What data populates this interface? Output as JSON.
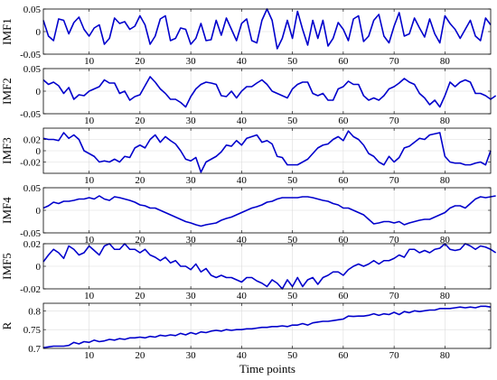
{
  "chart_data": {
    "type": "line",
    "xlabel": "Time points",
    "xlim": [
      1,
      89
    ],
    "xticks": [
      10,
      20,
      30,
      40,
      50,
      60,
      70,
      80
    ],
    "grid": true,
    "line_color": "#0000cc",
    "panels": [
      {
        "name": "IMF1",
        "ylim": [
          -0.05,
          0.05
        ],
        "yticks": [
          -0.05,
          0,
          0.05
        ],
        "ytick_labels": [
          "-0.05",
          "0",
          "0.05"
        ],
        "values": [
          0.025,
          -0.01,
          -0.02,
          0.028,
          0.025,
          -0.005,
          0.02,
          0.032,
          0.005,
          -0.01,
          0.008,
          0.015,
          -0.028,
          -0.015,
          0.03,
          0.018,
          0.022,
          0.005,
          0.012,
          0.035,
          0.015,
          -0.028,
          -0.01,
          0.028,
          0.035,
          -0.02,
          -0.015,
          0.008,
          0.005,
          -0.028,
          -0.015,
          0.018,
          -0.02,
          -0.018,
          0.025,
          -0.008,
          0.03,
          0.005,
          -0.02,
          0.018,
          0.028,
          -0.02,
          -0.025,
          0.025,
          0.05,
          0.025,
          -0.038,
          -0.015,
          0.025,
          -0.015,
          0.045,
          0.005,
          -0.03,
          0.025,
          -0.015,
          0.025,
          -0.032,
          -0.015,
          0.02,
          0.005,
          -0.02,
          0.028,
          0.035,
          -0.022,
          -0.01,
          0.025,
          0.038,
          -0.01,
          -0.025,
          0.012,
          0.042,
          -0.01,
          -0.005,
          0.03,
          0.008,
          -0.012,
          0.028,
          -0.005,
          -0.025,
          0.035,
          0.018,
          0.005,
          -0.015,
          0.005,
          0.025,
          -0.01,
          -0.02,
          0.03,
          0.015
        ]
      },
      {
        "name": "IMF2",
        "ylim": [
          -0.05,
          0.05
        ],
        "yticks": [
          -0.05,
          0,
          0.05
        ],
        "ytick_labels": [
          "-0.05",
          "0",
          "0.05"
        ],
        "values": [
          0.025,
          0.015,
          0.02,
          0.012,
          -0.005,
          0.008,
          -0.018,
          -0.008,
          -0.01,
          0.0,
          0.005,
          0.01,
          0.025,
          0.018,
          0.018,
          -0.005,
          0.0,
          -0.02,
          -0.012,
          -0.008,
          0.012,
          0.032,
          0.02,
          0.005,
          -0.005,
          -0.018,
          -0.018,
          -0.025,
          -0.035,
          -0.012,
          0.005,
          0.015,
          0.02,
          0.018,
          0.015,
          -0.01,
          -0.012,
          0.0,
          -0.015,
          0.0,
          0.01,
          0.01,
          0.018,
          0.025,
          0.015,
          0.0,
          -0.005,
          -0.01,
          -0.015,
          0.005,
          0.015,
          0.02,
          0.02,
          -0.005,
          -0.01,
          -0.005,
          -0.02,
          -0.02,
          0.005,
          0.01,
          0.022,
          0.015,
          0.015,
          -0.01,
          -0.02,
          -0.015,
          -0.02,
          -0.01,
          0.005,
          0.01,
          0.018,
          0.028,
          0.02,
          0.015,
          -0.005,
          -0.015,
          -0.03,
          -0.02,
          -0.035,
          -0.01,
          0.02,
          0.01,
          0.02,
          0.025,
          0.02,
          -0.005,
          -0.005,
          -0.01,
          -0.018,
          -0.01
        ]
      },
      {
        "name": "IMF3",
        "ylim": [
          -0.04,
          0.04
        ],
        "yticks": [
          -0.02,
          0,
          0.02
        ],
        "ytick_labels": [
          "-0.02",
          "0",
          "0.02"
        ],
        "values": [
          0.022,
          0.02,
          0.02,
          0.018,
          0.032,
          0.022,
          0.028,
          0.02,
          0.0,
          -0.005,
          -0.01,
          -0.02,
          -0.018,
          -0.02,
          -0.015,
          -0.02,
          -0.01,
          -0.012,
          0.005,
          0.01,
          0.005,
          0.02,
          0.028,
          0.015,
          0.025,
          0.018,
          0.012,
          0.0,
          -0.015,
          -0.018,
          -0.012,
          -0.038,
          -0.02,
          -0.015,
          -0.01,
          -0.002,
          0.01,
          0.008,
          0.018,
          0.01,
          0.022,
          0.025,
          0.028,
          0.015,
          0.018,
          0.012,
          -0.01,
          -0.012,
          -0.025,
          -0.025,
          -0.025,
          -0.02,
          -0.015,
          -0.005,
          0.005,
          0.01,
          0.012,
          0.02,
          0.025,
          0.018,
          0.035,
          0.025,
          0.02,
          0.01,
          -0.005,
          -0.01,
          -0.02,
          -0.025,
          -0.01,
          -0.02,
          -0.012,
          0.005,
          0.008,
          0.015,
          0.022,
          0.02,
          0.028,
          0.03,
          0.032,
          -0.01,
          -0.02,
          -0.022,
          -0.022,
          -0.025,
          -0.025,
          -0.022,
          -0.02,
          -0.025,
          0.0
        ]
      },
      {
        "name": "IMF4",
        "ylim": [
          -0.05,
          0.05
        ],
        "yticks": [
          -0.05,
          0,
          0.05
        ],
        "ytick_labels": [
          "-0.05",
          "0",
          "0.05"
        ],
        "values": [
          0.005,
          0.01,
          0.018,
          0.015,
          0.02,
          0.02,
          0.022,
          0.025,
          0.025,
          0.028,
          0.025,
          0.032,
          0.025,
          0.022,
          0.03,
          0.028,
          0.025,
          0.022,
          0.018,
          0.012,
          0.01,
          0.005,
          0.005,
          0.0,
          -0.005,
          -0.01,
          -0.015,
          -0.02,
          -0.025,
          -0.028,
          -0.032,
          -0.035,
          -0.032,
          -0.03,
          -0.028,
          -0.022,
          -0.018,
          -0.015,
          -0.01,
          -0.005,
          0.0,
          0.005,
          0.008,
          0.012,
          0.018,
          0.02,
          0.025,
          0.028,
          0.028,
          0.028,
          0.028,
          0.03,
          0.03,
          0.028,
          0.025,
          0.022,
          0.02,
          0.015,
          0.012,
          0.005,
          0.005,
          0.0,
          -0.005,
          -0.01,
          -0.02,
          -0.03,
          -0.028,
          -0.025,
          -0.025,
          -0.028,
          -0.025,
          -0.032,
          -0.028,
          -0.025,
          -0.022,
          -0.02,
          -0.02,
          -0.015,
          -0.01,
          -0.005,
          0.005,
          0.01,
          0.01,
          0.005,
          0.015,
          0.025,
          0.03,
          0.028,
          0.03,
          0.032
        ]
      },
      {
        "name": "IMF5",
        "ylim": [
          -0.02,
          0.02
        ],
        "yticks": [
          -0.02,
          0,
          0.02
        ],
        "ytick_labels": [
          "-0.02",
          "0",
          "0.02"
        ],
        "values": [
          0.004,
          0.01,
          0.015,
          0.012,
          0.007,
          0.018,
          0.015,
          0.01,
          0.012,
          0.018,
          0.014,
          0.01,
          0.018,
          0.02,
          0.015,
          0.015,
          0.02,
          0.015,
          0.015,
          0.012,
          0.015,
          0.01,
          0.008,
          0.005,
          0.008,
          0.003,
          0.005,
          0.0,
          0.0,
          -0.003,
          0.002,
          -0.005,
          -0.002,
          -0.008,
          -0.01,
          -0.008,
          -0.01,
          -0.01,
          -0.012,
          -0.014,
          -0.01,
          -0.01,
          -0.013,
          -0.015,
          -0.018,
          -0.012,
          -0.015,
          -0.02,
          -0.012,
          -0.018,
          -0.01,
          -0.018,
          -0.012,
          -0.01,
          -0.016,
          -0.01,
          -0.008,
          -0.005,
          -0.005,
          -0.008,
          -0.003,
          0.0,
          0.002,
          0.0,
          0.002,
          0.005,
          0.002,
          0.005,
          0.005,
          0.007,
          0.01,
          0.008,
          0.015,
          0.015,
          0.012,
          0.014,
          0.012,
          0.015,
          0.016,
          0.02,
          0.015,
          0.014,
          0.015,
          0.02,
          0.018,
          0.015,
          0.018,
          0.017,
          0.015,
          0.012
        ]
      },
      {
        "name": "R",
        "ylim": [
          0.7,
          0.82
        ],
        "yticks": [
          0.7,
          0.75,
          0.8
        ],
        "ytick_labels": [
          "0.7",
          "0.75",
          "0.8"
        ],
        "values": [
          0.702,
          0.704,
          0.706,
          0.706,
          0.706,
          0.708,
          0.716,
          0.712,
          0.718,
          0.716,
          0.722,
          0.718,
          0.72,
          0.724,
          0.722,
          0.726,
          0.724,
          0.728,
          0.728,
          0.73,
          0.728,
          0.732,
          0.73,
          0.735,
          0.733,
          0.736,
          0.734,
          0.74,
          0.736,
          0.742,
          0.738,
          0.744,
          0.742,
          0.746,
          0.748,
          0.746,
          0.75,
          0.748,
          0.75,
          0.75,
          0.752,
          0.752,
          0.754,
          0.756,
          0.756,
          0.758,
          0.758,
          0.76,
          0.758,
          0.762,
          0.762,
          0.766,
          0.762,
          0.768,
          0.77,
          0.772,
          0.772,
          0.774,
          0.776,
          0.778,
          0.786,
          0.785,
          0.786,
          0.786,
          0.788,
          0.792,
          0.788,
          0.792,
          0.79,
          0.796,
          0.79,
          0.798,
          0.795,
          0.8,
          0.798,
          0.8,
          0.802,
          0.802,
          0.806,
          0.806,
          0.806,
          0.808,
          0.81,
          0.808,
          0.81,
          0.808,
          0.812,
          0.812,
          0.81
        ]
      }
    ]
  }
}
